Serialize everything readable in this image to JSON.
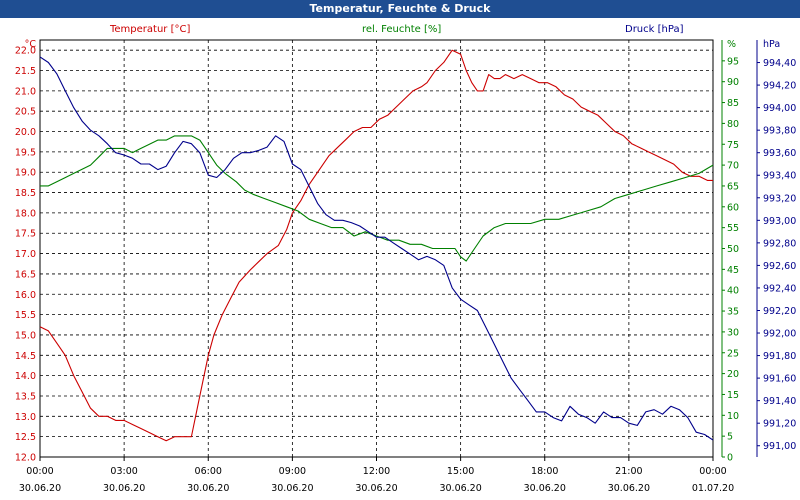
{
  "window": {
    "title": "Temperatur, Feuchte & Druck"
  },
  "colors": {
    "temperature": "#cc0000",
    "humidity": "#008000",
    "pressure": "#00008b",
    "titlebar": "#1f4e92",
    "grid": "#000000"
  },
  "chart_data": {
    "type": "line",
    "title": "Temperatur, Feuchte & Druck",
    "grid": true,
    "x_label_hours": [
      0,
      3,
      6,
      9,
      12,
      15,
      18,
      21,
      24
    ],
    "x_tick_times": [
      "00:00",
      "03:00",
      "06:00",
      "09:00",
      "12:00",
      "15:00",
      "18:00",
      "21:00",
      "00:00"
    ],
    "x_tick_dates": [
      "30.06.20",
      "30.06.20",
      "30.06.20",
      "30.06.20",
      "30.06.20",
      "30.06.20",
      "30.06.20",
      "30.06.20",
      "01.07.20"
    ],
    "axes": {
      "temperature": {
        "label": "Temperatur [°C]",
        "unit": "°C",
        "ylim": [
          12.0,
          22.25
        ],
        "ticks": [
          "12.0",
          "12.5",
          "13.0",
          "13.5",
          "14.0",
          "14.5",
          "15.0",
          "15.5",
          "16.0",
          "16.5",
          "17.0",
          "17.5",
          "18.0",
          "18.5",
          "19.0",
          "19.5",
          "20.0",
          "20.5",
          "21.0",
          "21.5",
          "22.0"
        ]
      },
      "humidity": {
        "label": "rel. Feuchte [%]",
        "unit": "%",
        "ylim": [
          0,
          100
        ],
        "ticks": [
          "0",
          "5",
          "10",
          "15",
          "20",
          "25",
          "30",
          "35",
          "40",
          "45",
          "50",
          "55",
          "60",
          "65",
          "70",
          "75",
          "80",
          "85",
          "90",
          "95"
        ]
      },
      "pressure": {
        "label": "Druck [hPa]",
        "unit": "hPa",
        "ylim": [
          990.9,
          994.6
        ],
        "ticks": [
          "991,00",
          "991,20",
          "991,40",
          "991,60",
          "991,80",
          "992,00",
          "992,20",
          "992,40",
          "992,60",
          "992,80",
          "993,00",
          "993,20",
          "993,40",
          "993,60",
          "993,80",
          "994,00",
          "994,20",
          "994,40"
        ]
      }
    },
    "series": [
      {
        "name": "Temperatur [°C]",
        "axis": "temperature",
        "color": "#cc0000",
        "x": [
          0,
          0.3,
          0.6,
          0.9,
          1.2,
          1.5,
          1.8,
          2.1,
          2.4,
          2.7,
          3.0,
          3.3,
          3.6,
          3.9,
          4.2,
          4.5,
          4.8,
          5.1,
          5.4,
          5.7,
          6.0,
          6.2,
          6.5,
          6.8,
          7.1,
          7.5,
          7.8,
          8.1,
          8.5,
          8.8,
          9.0,
          9.3,
          9.6,
          10.0,
          10.3,
          10.6,
          10.9,
          11.2,
          11.5,
          11.8,
          12.1,
          12.4,
          12.7,
          13.0,
          13.3,
          13.6,
          13.8,
          14.1,
          14.4,
          14.7,
          15.0,
          15.2,
          15.4,
          15.6,
          15.8,
          16.0,
          16.2,
          16.4,
          16.6,
          16.9,
          17.2,
          17.5,
          17.8,
          18.1,
          18.4,
          18.7,
          19.0,
          19.3,
          19.6,
          19.9,
          20.2,
          20.5,
          20.8,
          21.1,
          21.4,
          21.7,
          22.0,
          22.3,
          22.6,
          22.9,
          23.2,
          23.5,
          23.8,
          24.0
        ],
        "values": [
          15.2,
          15.1,
          14.8,
          14.5,
          14.0,
          13.6,
          13.2,
          13.0,
          13.0,
          12.9,
          12.9,
          12.8,
          12.7,
          12.6,
          12.5,
          12.4,
          12.5,
          12.5,
          12.5,
          13.5,
          14.5,
          15.0,
          15.5,
          15.9,
          16.3,
          16.6,
          16.8,
          17.0,
          17.2,
          17.6,
          18.0,
          18.3,
          18.7,
          19.1,
          19.4,
          19.6,
          19.8,
          20.0,
          20.1,
          20.1,
          20.3,
          20.4,
          20.6,
          20.8,
          21.0,
          21.1,
          21.2,
          21.5,
          21.7,
          22.0,
          21.9,
          21.5,
          21.2,
          21.0,
          21.0,
          21.4,
          21.3,
          21.3,
          21.4,
          21.3,
          21.4,
          21.3,
          21.2,
          21.2,
          21.1,
          20.9,
          20.8,
          20.6,
          20.5,
          20.4,
          20.2,
          20.0,
          19.9,
          19.7,
          19.6,
          19.5,
          19.4,
          19.3,
          19.2,
          19.0,
          18.9,
          18.9,
          18.8,
          18.8
        ]
      },
      {
        "name": "rel. Feuchte [%]",
        "axis": "humidity",
        "color": "#008000",
        "x": [
          0,
          0.3,
          0.6,
          0.9,
          1.2,
          1.5,
          1.8,
          2.1,
          2.4,
          2.7,
          3.0,
          3.3,
          3.6,
          3.9,
          4.2,
          4.5,
          4.8,
          5.1,
          5.4,
          5.7,
          6.0,
          6.3,
          6.6,
          7.0,
          7.3,
          7.6,
          8.0,
          8.4,
          8.8,
          9.2,
          9.6,
          10.0,
          10.4,
          10.8,
          11.2,
          11.6,
          12.0,
          12.4,
          12.8,
          13.2,
          13.6,
          14.0,
          14.4,
          14.8,
          15.0,
          15.2,
          15.5,
          15.8,
          16.2,
          16.6,
          17.0,
          17.5,
          18.0,
          18.5,
          19.0,
          19.5,
          20.0,
          20.5,
          21.0,
          21.5,
          22.0,
          22.5,
          23.0,
          23.5,
          24.0
        ],
        "values": [
          65,
          65,
          66,
          67,
          68,
          69,
          70,
          72,
          74,
          74,
          74,
          73,
          74,
          75,
          76,
          76,
          77,
          77,
          77,
          76,
          73,
          70,
          68,
          66,
          64,
          63,
          62,
          61,
          60,
          59,
          57,
          56,
          55,
          55,
          53,
          54,
          53,
          52,
          52,
          51,
          51,
          50,
          50,
          50,
          48,
          47,
          50,
          53,
          55,
          56,
          56,
          56,
          57,
          57,
          58,
          59,
          60,
          62,
          63,
          64,
          65,
          66,
          67,
          68,
          70
        ]
      },
      {
        "name": "Druck [hPa]",
        "axis": "pressure",
        "color": "#00008b",
        "x": [
          0,
          0.3,
          0.6,
          0.9,
          1.2,
          1.5,
          1.8,
          2.1,
          2.4,
          2.7,
          3.0,
          3.3,
          3.6,
          3.9,
          4.2,
          4.5,
          4.8,
          5.1,
          5.4,
          5.7,
          6.0,
          6.3,
          6.6,
          6.9,
          7.2,
          7.5,
          7.8,
          8.1,
          8.4,
          8.7,
          9.0,
          9.3,
          9.6,
          9.9,
          10.2,
          10.5,
          10.8,
          11.1,
          11.4,
          11.7,
          12.0,
          12.3,
          12.6,
          12.9,
          13.2,
          13.5,
          13.8,
          14.1,
          14.4,
          14.7,
          15.0,
          15.3,
          15.6,
          15.9,
          16.2,
          16.5,
          16.8,
          17.1,
          17.4,
          17.7,
          18.0,
          18.3,
          18.6,
          18.9,
          19.2,
          19.5,
          19.8,
          20.1,
          20.4,
          20.7,
          21.0,
          21.3,
          21.6,
          21.9,
          22.2,
          22.5,
          22.8,
          23.1,
          23.4,
          23.7,
          24.0
        ],
        "values": [
          994.45,
          994.4,
          994.3,
          994.15,
          994.0,
          993.88,
          993.8,
          993.75,
          993.68,
          993.6,
          993.58,
          993.55,
          993.5,
          993.5,
          993.45,
          993.48,
          993.6,
          993.7,
          993.68,
          993.6,
          993.4,
          993.38,
          993.45,
          993.55,
          993.6,
          993.6,
          993.62,
          993.65,
          993.75,
          993.7,
          993.5,
          993.45,
          993.3,
          993.15,
          993.05,
          993.0,
          993.0,
          992.98,
          992.95,
          992.9,
          992.85,
          992.85,
          992.8,
          992.75,
          992.7,
          992.65,
          992.68,
          992.65,
          992.6,
          992.4,
          992.3,
          992.25,
          992.2,
          992.05,
          991.9,
          991.75,
          991.6,
          991.5,
          991.4,
          991.3,
          991.3,
          991.25,
          991.22,
          991.35,
          991.28,
          991.25,
          991.2,
          991.3,
          991.25,
          991.25,
          991.2,
          991.18,
          991.3,
          991.32,
          991.28,
          991.35,
          991.32,
          991.25,
          991.12,
          991.1,
          991.05
        ]
      }
    ]
  }
}
